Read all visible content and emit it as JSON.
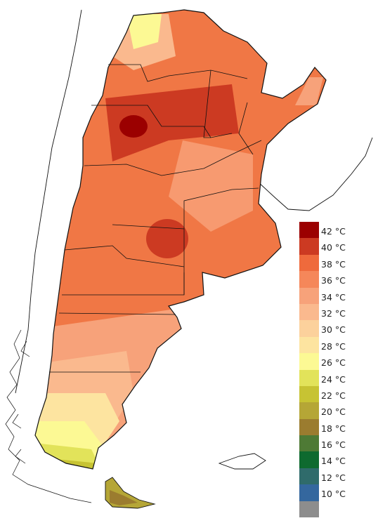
{
  "legend": {
    "unit": "°C",
    "items": [
      {
        "value": "42",
        "color": "#9b0000"
      },
      {
        "value": "40",
        "color": "#cc3a22"
      },
      {
        "value": "38",
        "color": "#ef6a3c"
      },
      {
        "value": "36",
        "color": "#f5875a"
      },
      {
        "value": "34",
        "color": "#f7a27a"
      },
      {
        "value": "32",
        "color": "#fab98e"
      },
      {
        "value": "30",
        "color": "#fcd19c"
      },
      {
        "value": "28",
        "color": "#fde4a0"
      },
      {
        "value": "26",
        "color": "#fcf994"
      },
      {
        "value": "24",
        "color": "#e2e35a"
      },
      {
        "value": "22",
        "color": "#c7c333"
      },
      {
        "value": "20",
        "color": "#b5a636"
      },
      {
        "value": "18",
        "color": "#9b7c2f"
      },
      {
        "value": "16",
        "color": "#4e7a35"
      },
      {
        "value": "14",
        "color": "#0e6a2f"
      },
      {
        "value": "12",
        "color": "#2f6b6b"
      },
      {
        "value": "10",
        "color": "#34679e"
      },
      {
        "value": "",
        "color": "#8d8d8d"
      }
    ]
  }
}
